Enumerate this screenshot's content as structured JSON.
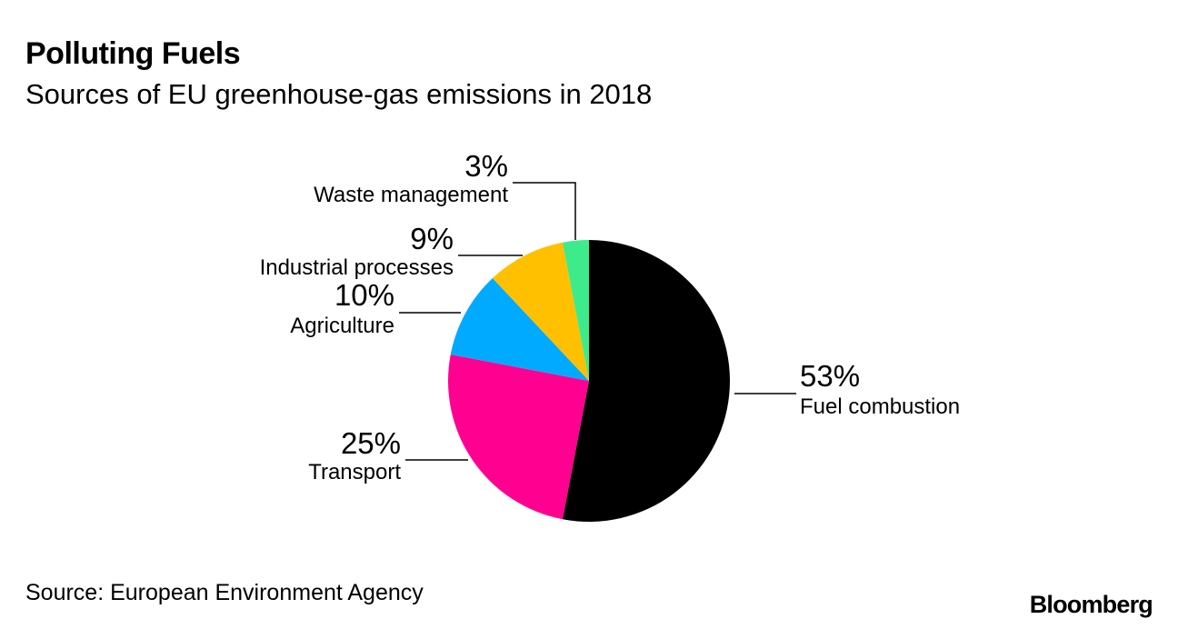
{
  "chart_data": {
    "type": "pie",
    "title": "Polluting Fuels",
    "subtitle": "Sources of EU greenhouse-gas emissions in 2018",
    "slices": [
      {
        "label": "Fuel combustion",
        "value": 53,
        "value_label": "53%",
        "color": "#000000"
      },
      {
        "label": "Transport",
        "value": 25,
        "value_label": "25%",
        "color": "#ff0090"
      },
      {
        "label": "Agriculture",
        "value": 10,
        "value_label": "10%",
        "color": "#00aaff"
      },
      {
        "label": "Industrial processes",
        "value": 9,
        "value_label": "9%",
        "color": "#ffc000"
      },
      {
        "label": "Waste management",
        "value": 3,
        "value_label": "3%",
        "color": "#3deb8a"
      }
    ],
    "start": "12 o'clock",
    "direction": "clockwise"
  },
  "footer": {
    "source": "Source: European Environment Agency",
    "brand": "Bloomberg"
  }
}
